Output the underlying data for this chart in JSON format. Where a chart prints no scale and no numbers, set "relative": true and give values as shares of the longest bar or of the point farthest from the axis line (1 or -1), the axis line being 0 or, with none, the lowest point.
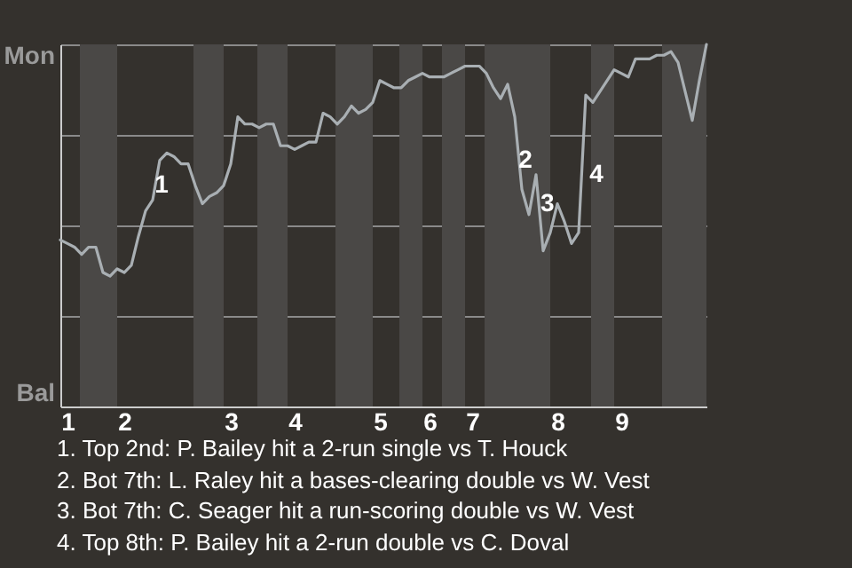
{
  "chart_data": {
    "type": "line",
    "relative": true,
    "categories": [
      null,
      "1",
      null,
      null,
      null,
      null,
      null,
      null,
      null,
      "2",
      null,
      null,
      null,
      null,
      null,
      null,
      null,
      null,
      null,
      null,
      null,
      null,
      null,
      null,
      "3",
      null,
      null,
      null,
      null,
      null,
      null,
      null,
      null,
      "4",
      null,
      null,
      null,
      null,
      null,
      null,
      null,
      null,
      null,
      null,
      null,
      "5",
      null,
      null,
      null,
      null,
      null,
      null,
      "6",
      null,
      null,
      null,
      null,
      null,
      "7",
      null,
      null,
      null,
      null,
      null,
      null,
      null,
      null,
      null,
      null,
      null,
      "8",
      null,
      null,
      null,
      null,
      null,
      null,
      null,
      null,
      "9",
      null,
      null,
      null,
      null,
      null,
      null,
      null,
      null,
      null,
      null,
      null,
      null
    ],
    "series": [
      {
        "color": "#a9afb3",
        "values": [
          0.46,
          0.45,
          0.44,
          0.42,
          0.44,
          0.44,
          0.37,
          0.36,
          0.38,
          0.37,
          0.39,
          0.47,
          0.54,
          0.57,
          0.68,
          0.7,
          0.69,
          0.67,
          0.67,
          0.61,
          0.56,
          0.58,
          0.59,
          0.61,
          0.67,
          0.8,
          0.78,
          0.78,
          0.77,
          0.78,
          0.78,
          0.72,
          0.72,
          0.71,
          0.72,
          0.73,
          0.73,
          0.81,
          0.8,
          0.78,
          0.8,
          0.83,
          0.81,
          0.82,
          0.84,
          0.9,
          0.89,
          0.88,
          0.88,
          0.9,
          0.91,
          0.92,
          0.91,
          0.91,
          0.91,
          0.92,
          0.93,
          0.94,
          0.94,
          0.94,
          0.92,
          0.88,
          0.85,
          0.89,
          0.8,
          0.6,
          0.53,
          0.64,
          0.43,
          0.48,
          0.56,
          0.51,
          0.45,
          0.48,
          0.86,
          0.84,
          0.87,
          0.9,
          0.93,
          0.92,
          0.91,
          0.96,
          0.96,
          0.96,
          0.97,
          0.97,
          0.98,
          0.95,
          0.87,
          0.79,
          0.9,
          1
        ]
      }
    ],
    "grid": "y",
    "annotations": [
      "Mon",
      "Bal",
      "1",
      "2",
      "3",
      "4",
      "1. Top 2nd: P. Bailey hit a 2-run single vs T. Houck",
      "2. Bot 7th: L. Raley hit a bases-clearing double vs W. Vest",
      "3. Bot 7th: C. Seager hit a run-scoring double vs W. Vest",
      "4. Top 8th: P. Bailey hit a 2-run double vs C. Doval"
    ]
  }
}
